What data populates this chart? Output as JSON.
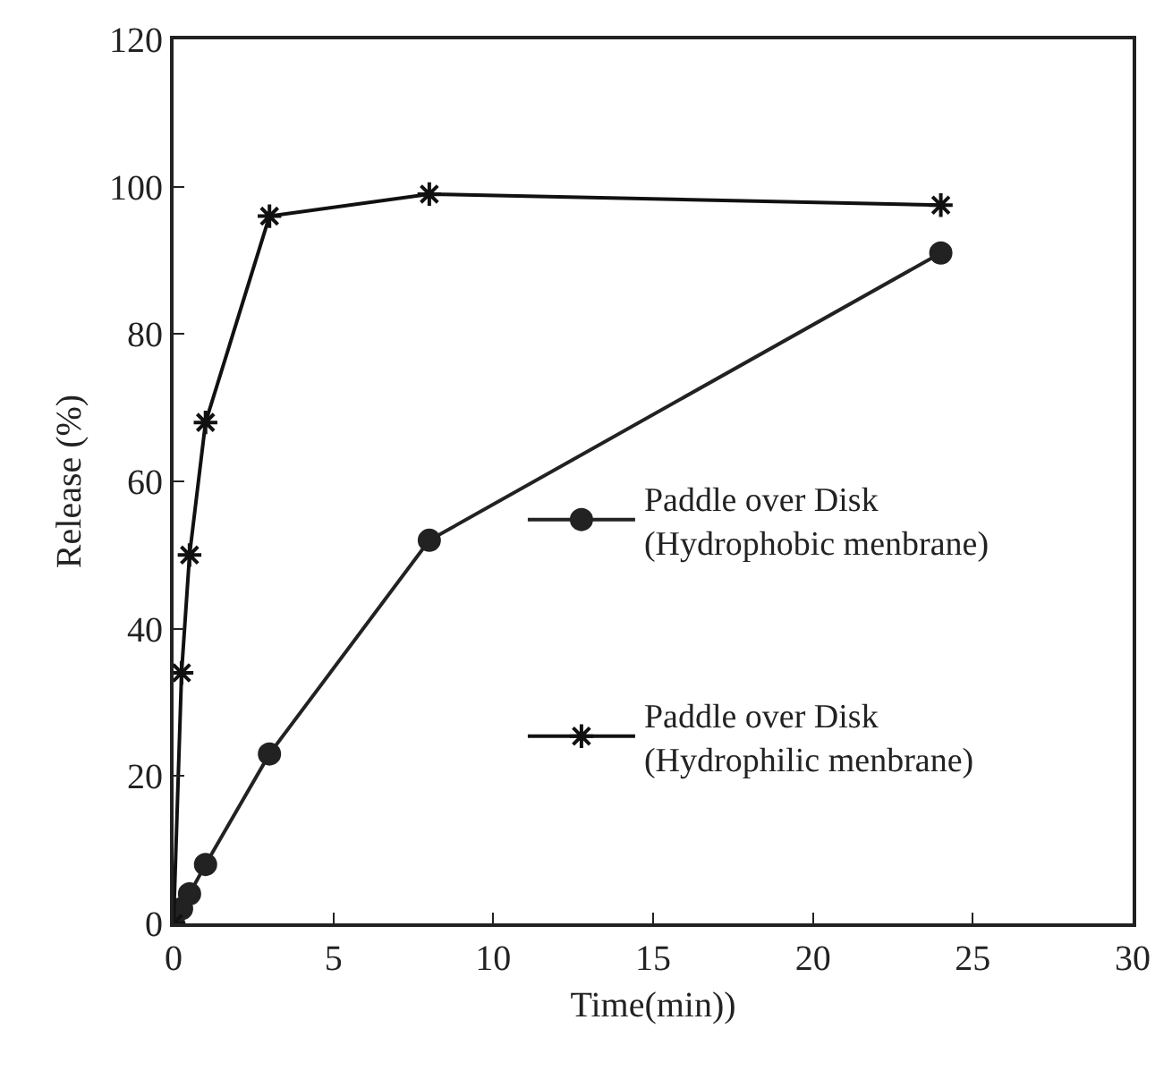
{
  "chart_data": {
    "type": "line",
    "xlabel": "Time(min))",
    "ylabel": "Release (%)",
    "xlim": [
      0,
      30
    ],
    "xticks": [
      0,
      5,
      10,
      15,
      20,
      25,
      30
    ],
    "ylim": [
      0,
      120
    ],
    "yticks": [
      0,
      20,
      40,
      60,
      80,
      100,
      120
    ],
    "legend": "right",
    "line_style": "solid",
    "series": [
      {
        "name": "Paddle over Disk\n(Hydrophobic menbrane)",
        "color": "#222222",
        "marker": "circle",
        "x": [
          0,
          0.25,
          0.5,
          1,
          3,
          8,
          24
        ],
        "values": [
          0,
          2,
          4,
          8,
          23,
          52,
          91
        ]
      },
      {
        "name": "Paddle over Disk\n(Hydrophilic menbrane)",
        "color": "#111111",
        "marker": "cross",
        "x": [
          0,
          0.25,
          0.5,
          1,
          3,
          8,
          24
        ],
        "values": [
          0,
          34,
          50,
          68,
          96,
          99,
          97.5
        ]
      }
    ]
  }
}
